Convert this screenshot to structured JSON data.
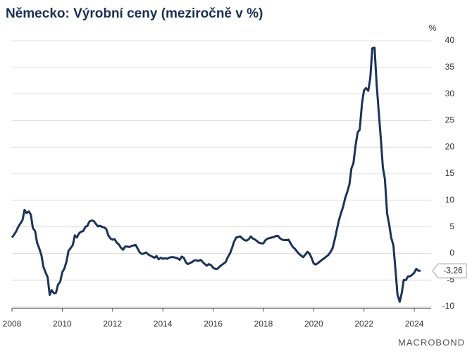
{
  "chart_data": {
    "type": "line",
    "title": "Německo: Výrobní ceny (meziročně v %)",
    "y_unit": "%",
    "source_logo": "MACROBOND",
    "xlim": [
      2008,
      2024.67
    ],
    "xticks": [
      2008,
      2010,
      2012,
      2014,
      2016,
      2018,
      2020,
      2022,
      2024
    ],
    "ylim": [
      -10.3,
      41.5
    ],
    "yticks": [
      40,
      35,
      30,
      25,
      20,
      15,
      10,
      5,
      0,
      -5,
      -10
    ],
    "grid": true,
    "x": [
      2008.0,
      2008.08,
      2008.17,
      2008.25,
      2008.33,
      2008.42,
      2008.5,
      2008.58,
      2008.67,
      2008.75,
      2008.83,
      2008.92,
      2009.0,
      2009.08,
      2009.17,
      2009.25,
      2009.33,
      2009.42,
      2009.5,
      2009.58,
      2009.67,
      2009.75,
      2009.83,
      2009.92,
      2010.0,
      2010.08,
      2010.17,
      2010.25,
      2010.33,
      2010.42,
      2010.5,
      2010.58,
      2010.67,
      2010.75,
      2010.83,
      2010.92,
      2011.0,
      2011.08,
      2011.17,
      2011.25,
      2011.33,
      2011.42,
      2011.5,
      2011.58,
      2011.67,
      2011.75,
      2011.83,
      2011.92,
      2012.0,
      2012.08,
      2012.17,
      2012.25,
      2012.33,
      2012.42,
      2012.5,
      2012.58,
      2012.67,
      2012.75,
      2012.83,
      2012.92,
      2013.0,
      2013.08,
      2013.17,
      2013.25,
      2013.33,
      2013.42,
      2013.5,
      2013.58,
      2013.67,
      2013.75,
      2013.83,
      2013.92,
      2014.0,
      2014.08,
      2014.17,
      2014.25,
      2014.33,
      2014.42,
      2014.5,
      2014.58,
      2014.67,
      2014.75,
      2014.83,
      2014.92,
      2015.0,
      2015.08,
      2015.17,
      2015.25,
      2015.33,
      2015.42,
      2015.5,
      2015.58,
      2015.67,
      2015.75,
      2015.83,
      2015.92,
      2016.0,
      2016.08,
      2016.17,
      2016.25,
      2016.33,
      2016.42,
      2016.5,
      2016.58,
      2016.67,
      2016.75,
      2016.83,
      2016.92,
      2017.0,
      2017.08,
      2017.17,
      2017.25,
      2017.33,
      2017.42,
      2017.5,
      2017.58,
      2017.67,
      2017.75,
      2017.83,
      2017.92,
      2018.0,
      2018.08,
      2018.17,
      2018.25,
      2018.33,
      2018.42,
      2018.5,
      2018.58,
      2018.67,
      2018.75,
      2018.83,
      2018.92,
      2019.0,
      2019.08,
      2019.17,
      2019.25,
      2019.33,
      2019.42,
      2019.5,
      2019.58,
      2019.67,
      2019.75,
      2019.83,
      2019.92,
      2020.0,
      2020.08,
      2020.17,
      2020.25,
      2020.33,
      2020.42,
      2020.5,
      2020.58,
      2020.67,
      2020.75,
      2020.83,
      2020.92,
      2021.0,
      2021.08,
      2021.17,
      2021.25,
      2021.33,
      2021.42,
      2021.5,
      2021.58,
      2021.67,
      2021.75,
      2021.83,
      2021.92,
      2022.0,
      2022.08,
      2022.17,
      2022.25,
      2022.33,
      2022.42,
      2022.5,
      2022.58,
      2022.67,
      2022.75,
      2022.83,
      2022.92,
      2023.0,
      2023.08,
      2023.17,
      2023.25,
      2023.33,
      2023.42,
      2023.5,
      2023.58,
      2023.67,
      2023.75,
      2023.83,
      2023.92,
      2024.0,
      2024.08,
      2024.17,
      2024.25
    ],
    "series": [
      {
        "color": "#1c3358",
        "values": [
          3.0,
          3.5,
          4.2,
          5.0,
          5.6,
          6.3,
          8.2,
          7.6,
          7.9,
          7.3,
          4.8,
          4.2,
          2.0,
          1.0,
          -0.3,
          -2.5,
          -3.5,
          -4.5,
          -7.8,
          -6.9,
          -7.5,
          -7.4,
          -5.9,
          -5.3,
          -3.5,
          -2.9,
          -1.5,
          0.5,
          1.0,
          1.6,
          3.4,
          3.0,
          3.8,
          4.1,
          4.2,
          5.0,
          5.2,
          6.0,
          6.2,
          6.1,
          5.6,
          5.1,
          5.2,
          5.0,
          4.9,
          4.6,
          3.4,
          2.8,
          2.6,
          2.7,
          2.0,
          1.7,
          1.1,
          0.7,
          1.3,
          1.3,
          1.2,
          1.4,
          1.5,
          1.6,
          0.9,
          0.2,
          -0.1,
          0.0,
          0.2,
          -0.2,
          -0.4,
          -0.6,
          -0.8,
          -0.5,
          -1.1,
          -0.8,
          -1.0,
          -0.9,
          -1.0,
          -0.8,
          -0.7,
          -0.7,
          -0.8,
          -0.9,
          -1.2,
          -0.6,
          -0.8,
          -1.7,
          -2.0,
          -1.8,
          -1.6,
          -1.3,
          -1.3,
          -1.4,
          -1.2,
          -1.6,
          -2.0,
          -2.3,
          -2.0,
          -2.2,
          -2.7,
          -2.9,
          -2.9,
          -2.5,
          -2.2,
          -1.9,
          -1.6,
          -0.7,
          0.0,
          1.0,
          2.2,
          3.0,
          3.1,
          3.2,
          2.8,
          2.5,
          2.4,
          2.7,
          3.2,
          2.8,
          2.6,
          2.3,
          2.0,
          1.9,
          1.9,
          2.5,
          2.8,
          2.9,
          3.0,
          3.1,
          3.3,
          3.3,
          2.8,
          2.6,
          2.5,
          2.5,
          2.6,
          1.9,
          1.2,
          0.9,
          0.4,
          -0.1,
          -0.4,
          -0.7,
          -0.2,
          0.3,
          0.0,
          -0.9,
          -1.9,
          -2.1,
          -1.8,
          -1.5,
          -1.2,
          -0.9,
          -0.6,
          -0.3,
          0.3,
          1.0,
          2.5,
          4.5,
          6.2,
          7.5,
          8.8,
          10.4,
          11.5,
          13.0,
          16.0,
          17.0,
          20.5,
          22.8,
          23.3,
          28.2,
          30.7,
          31.1,
          30.6,
          33.0,
          38.6,
          38.7,
          32.0,
          27.0,
          21.5,
          16.2,
          14.0,
          7.5,
          5.5,
          3.0,
          1.5,
          -3.0,
          -7.7,
          -9.1,
          -7.5,
          -5.0,
          -5.0,
          -4.3,
          -4.3,
          -4.0,
          -3.6,
          -2.9,
          -3.26,
          -3.26
        ]
      }
    ],
    "last_value_label": "-3,26"
  }
}
